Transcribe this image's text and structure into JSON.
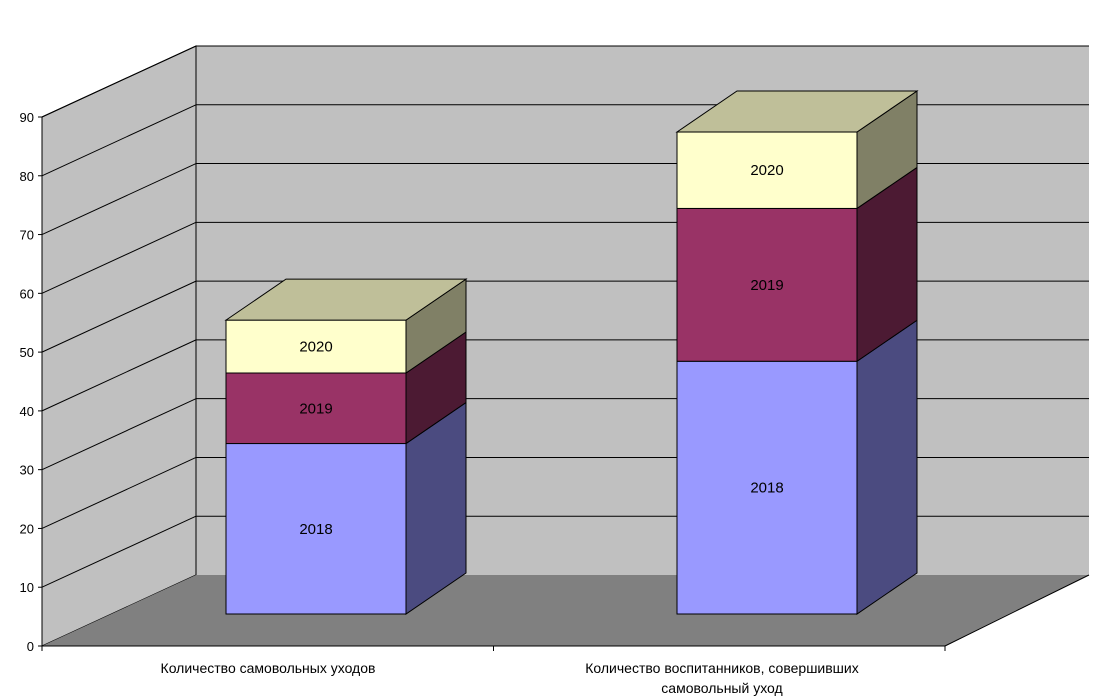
{
  "chart_data": {
    "type": "bar",
    "subtype": "stacked-3d",
    "categories": [
      "Количество самовольных уходов",
      "Количество воспитанников, совершивших самовольный уход"
    ],
    "category_lines": [
      [
        "Количество самовольных уходов"
      ],
      [
        "Количество воспитанников, совершивших",
        "самовольный уход"
      ]
    ],
    "series": [
      {
        "name": "2018",
        "values": [
          29,
          43
        ],
        "color": "#9999FF",
        "side_color": "#4B4B80",
        "top_color": "#CCCCFF"
      },
      {
        "name": "2019",
        "values": [
          12,
          26
        ],
        "color": "#993366",
        "side_color": "#4C1A33",
        "top_color": "#C99AB0"
      },
      {
        "name": "2020",
        "values": [
          9,
          13
        ],
        "color": "#FFFFCC",
        "side_color": "#808066",
        "top_color": "#BFBF99"
      }
    ],
    "segment_labels_show_series_name": true,
    "ylim": [
      0,
      90
    ],
    "yticks": [
      "0",
      "10",
      "20",
      "30",
      "40",
      "50",
      "60",
      "70",
      "80",
      "90"
    ],
    "ytick_values": [
      0,
      10,
      20,
      30,
      40,
      50,
      60,
      70,
      80,
      90
    ],
    "grid": true,
    "legend": "none",
    "colors": {
      "back_wall": "#C0C0C0",
      "side_wall": "#C0C0C0",
      "floor": "#808080",
      "gridline": "#000000"
    },
    "title": "",
    "xlabel": "",
    "ylabel": ""
  }
}
